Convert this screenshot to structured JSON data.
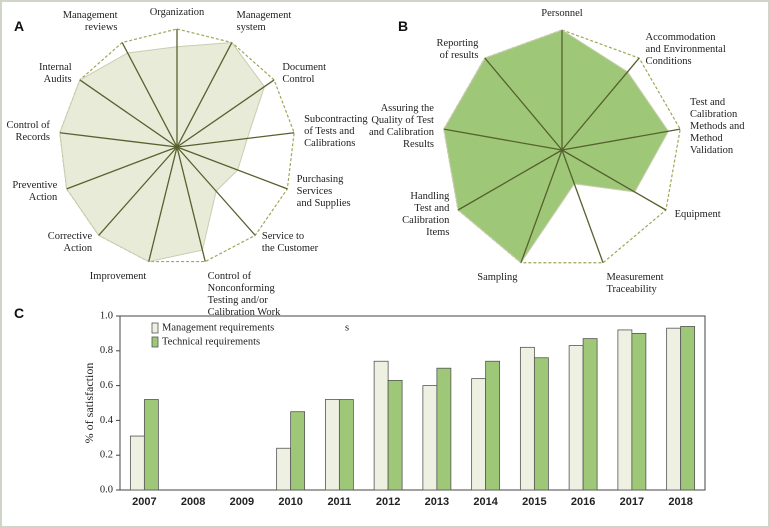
{
  "chart_data": [
    {
      "type": "radar",
      "panel": "A",
      "categories": [
        "Organization",
        "Management\nsystem",
        "Document\nControl",
        "Subcontracting\nof Tests and\nCalibrations",
        "Purchasing\nServices\nand Supplies",
        "Service to\nthe Customer",
        "Control of\nNonconforming\nTesting and/or\nCalibration Work",
        "Improvement",
        "Corrective\nAction",
        "Preventive\nAction",
        "Control of\nRecords",
        "Internal\nAudits",
        "Management\nreviews"
      ],
      "values": [
        0.85,
        1.0,
        0.9,
        0.6,
        0.55,
        0.5,
        0.9,
        1.0,
        1.0,
        1.0,
        1.0,
        1.0,
        0.9
      ],
      "rlim": [
        0,
        1
      ],
      "color": "#e9ebd9"
    },
    {
      "type": "radar",
      "panel": "B",
      "categories": [
        "Personnel",
        "Accommodation\nand Environmental\nConditions",
        "Test and Calibration\nMethods and Method\nValidation",
        "Equipment",
        "Measurement\nTraceability",
        "Sampling",
        "Handling\nTest and\nCalibration\nItems",
        "Assuring the\nQuality of Test\nand Calibration\nResults",
        "Reporting\nof results"
      ],
      "values": [
        1.0,
        0.85,
        0.9,
        0.7,
        0.3,
        1.0,
        1.0,
        1.0,
        1.0
      ],
      "rlim": [
        0,
        1
      ],
      "color": "#9ec878"
    },
    {
      "type": "bar",
      "panel": "C",
      "y_label": "% of satisfaction",
      "annotation": "s",
      "categories": [
        "2007",
        "2008",
        "2009",
        "2010",
        "2011",
        "2012",
        "2013",
        "2014",
        "2015",
        "2016",
        "2017",
        "2018"
      ],
      "series": [
        {
          "name": "Management requirements",
          "color": "#eef0e2",
          "values": [
            0.31,
            null,
            null,
            0.24,
            0.52,
            0.74,
            0.6,
            0.64,
            0.82,
            0.83,
            0.92,
            0.93
          ]
        },
        {
          "name": "Technical requirements",
          "color": "#9ec878",
          "values": [
            0.52,
            null,
            null,
            0.45,
            0.52,
            0.63,
            0.7,
            0.74,
            0.76,
            0.87,
            0.9,
            0.94
          ]
        }
      ],
      "ylim": [
        0,
        1
      ],
      "yticks": [
        {
          "value": 0,
          "label": "0.0"
        },
        0.2,
        0.4,
        0.6,
        0.8,
        {
          "value": 1,
          "label": "1.0"
        }
      ]
    }
  ]
}
